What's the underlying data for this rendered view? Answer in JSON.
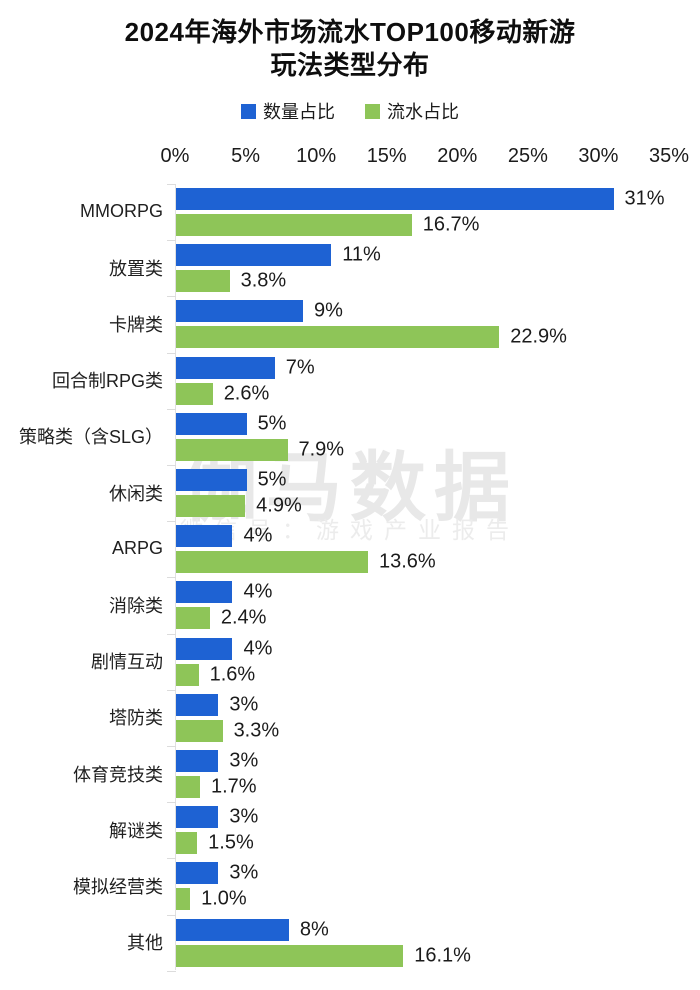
{
  "title": {
    "line1": "2024年海外市场流水TOP100移动新游",
    "line2": "玩法类型分布"
  },
  "legend": [
    {
      "key": "quantity-share",
      "label": "数量占比",
      "color": "#1e62d3"
    },
    {
      "key": "revenue-share",
      "label": "流水占比",
      "color": "#8ec558"
    }
  ],
  "watermark": {
    "line1": "伽马数据",
    "line2": "微信号：游戏产业报告"
  },
  "chart_data": {
    "type": "bar",
    "orientation": "horizontal",
    "title": "2024年海外市场流水TOP100移动新游玩法类型分布",
    "xlabel": "",
    "ylabel": "",
    "xlim": [
      0,
      35
    ],
    "grid": false,
    "legend_position": "top",
    "axis_ticks": [
      "0%",
      "5%",
      "10%",
      "15%",
      "20%",
      "25%",
      "30%",
      "35%"
    ],
    "axis_tick_values": [
      0,
      5,
      10,
      15,
      20,
      25,
      30,
      35
    ],
    "categories": [
      "MMORPG",
      "放置类",
      "卡牌类",
      "回合制RPG类",
      "策略类（含SLG）",
      "休闲类",
      "ARPG",
      "消除类",
      "剧情互动",
      "塔防类",
      "体育竞技类",
      "解谜类",
      "模拟经营类",
      "其他"
    ],
    "series": [
      {
        "name": "数量占比",
        "key": "quantity",
        "color": "#1e62d3",
        "values": [
          31,
          11,
          9,
          7,
          5,
          5,
          4,
          4,
          4,
          3,
          3,
          3,
          3,
          8
        ],
        "value_labels": [
          "31%",
          "11%",
          "9%",
          "7%",
          "5%",
          "5%",
          "4%",
          "4%",
          "4%",
          "3%",
          "3%",
          "3%",
          "3%",
          "8%"
        ]
      },
      {
        "name": "流水占比",
        "key": "revenue",
        "color": "#8ec558",
        "values": [
          16.7,
          3.8,
          22.9,
          2.6,
          7.9,
          4.9,
          13.6,
          2.4,
          1.6,
          3.3,
          1.7,
          1.5,
          1.0,
          16.1
        ],
        "value_labels": [
          "16.7%",
          "3.8%",
          "22.9%",
          "2.6%",
          "7.9%",
          "4.9%",
          "13.6%",
          "2.4%",
          "1.6%",
          "3.3%",
          "1.7%",
          "1.5%",
          "1.0%",
          "16.1%"
        ]
      }
    ]
  }
}
